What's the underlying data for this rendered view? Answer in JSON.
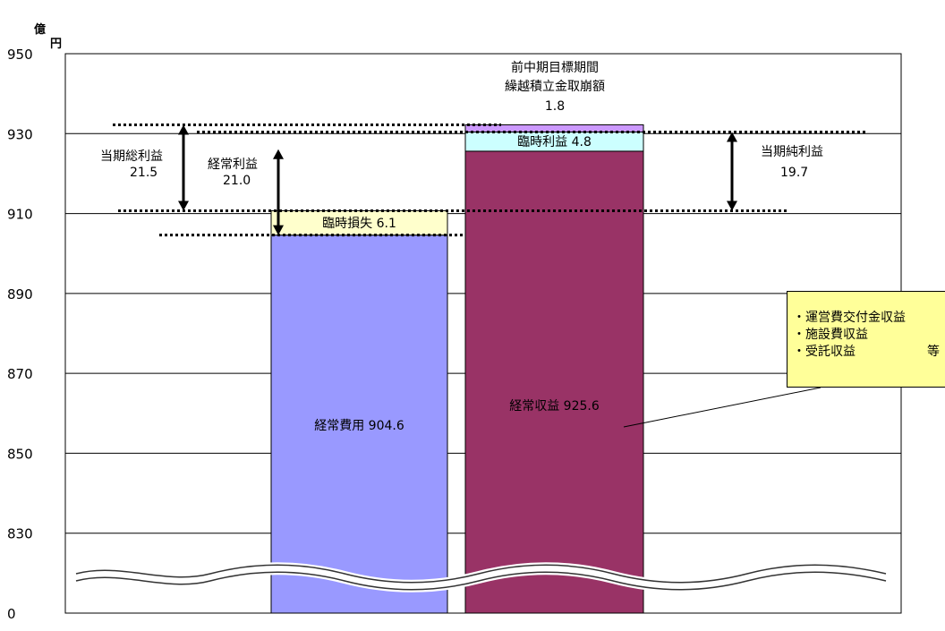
{
  "chart_data": {
    "type": "bar",
    "unit_label": [
      "億",
      "円"
    ],
    "y_ticks": [
      "950",
      "930",
      "910",
      "890",
      "870",
      "850",
      "830",
      "0"
    ],
    "ylim": [
      810,
      950
    ],
    "axis_break": true,
    "grid": true,
    "columns": [
      {
        "segments": [
          {
            "name": "経常費用",
            "value": 904.6,
            "label": "経常費用  904.6",
            "color": "#9999ff"
          },
          {
            "name": "臨時損失",
            "value": 6.1,
            "label": "臨時損失  6.1",
            "color": "#ffffcc"
          }
        ]
      },
      {
        "segments": [
          {
            "name": "経常収益",
            "value": 925.6,
            "label": "経常収益  925.6",
            "color": "#993366"
          },
          {
            "name": "臨時利益",
            "value": 4.8,
            "label": "臨時利益  4.8",
            "color": "#ccffff"
          },
          {
            "name": "前中期目標期間繰越積立金取崩額",
            "value": 1.8,
            "color": "#cc99ff"
          }
        ]
      }
    ],
    "annotations": {
      "total_profit": {
        "lines": [
          "当期総利益",
          "21.5"
        ],
        "from": 910.7,
        "to": 932.2
      },
      "ordinary_profit": {
        "lines": [
          "経常利益",
          "21.0"
        ],
        "from": 904.6,
        "to": 925.6
      },
      "net_profit": {
        "lines": [
          "当期純利益",
          "19.7"
        ],
        "from": 910.7,
        "to": 930.4
      },
      "carryover": {
        "lines": [
          "前中期目標期間",
          "繰越積立金取崩額",
          "1.8"
        ]
      }
    },
    "callout": {
      "items": [
        "・運営費交付金収益",
        "・施設費収益",
        "・受託収益"
      ],
      "suffix": "等"
    }
  }
}
